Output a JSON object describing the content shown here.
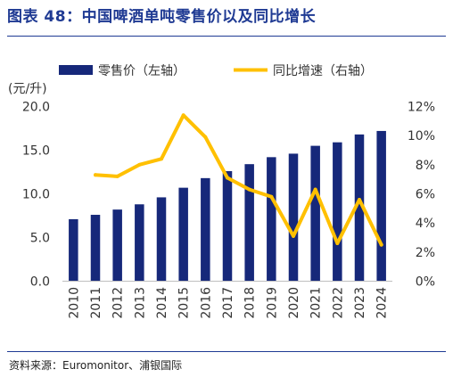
{
  "header": {
    "figure_label": "图表 48：",
    "title": "中国啤酒单吨零售价以及同比增长"
  },
  "source": "资料来源：Euromonitor、浦银国际",
  "colors": {
    "bar": "#16287a",
    "line": "#ffc000",
    "title": "#1f3a93"
  },
  "chart_data": {
    "type": "bar",
    "title": "中国啤酒单吨零售价以及同比增长",
    "categories": [
      "2010",
      "2011",
      "2012",
      "2013",
      "2014",
      "2015",
      "2016",
      "2017",
      "2018",
      "2019",
      "2020",
      "2021",
      "2022",
      "2023",
      "2024"
    ],
    "y_unit_label": "(元/升)",
    "ylim": [
      0,
      20
    ],
    "y_ticks": [
      "0.0",
      "5.0",
      "10.0",
      "15.0",
      "20.0"
    ],
    "y2lim": [
      0,
      12
    ],
    "y2_ticks": [
      "0%",
      "2%",
      "4%",
      "6%",
      "8%",
      "10%",
      "12%"
    ],
    "grid": false,
    "legend_position": "top",
    "series": [
      {
        "name": "零售价（左轴）",
        "type": "bar",
        "axis": "left",
        "values": [
          7.1,
          7.6,
          8.2,
          8.8,
          9.6,
          10.7,
          11.8,
          12.6,
          13.4,
          14.2,
          14.6,
          15.5,
          15.9,
          16.8,
          17.2
        ]
      },
      {
        "name": "同比增速（右轴）",
        "type": "line",
        "axis": "right",
        "values": [
          null,
          7.3,
          7.2,
          8.0,
          8.4,
          11.4,
          9.9,
          7.1,
          6.3,
          5.8,
          3.1,
          6.3,
          2.6,
          5.6,
          2.5
        ]
      }
    ]
  }
}
